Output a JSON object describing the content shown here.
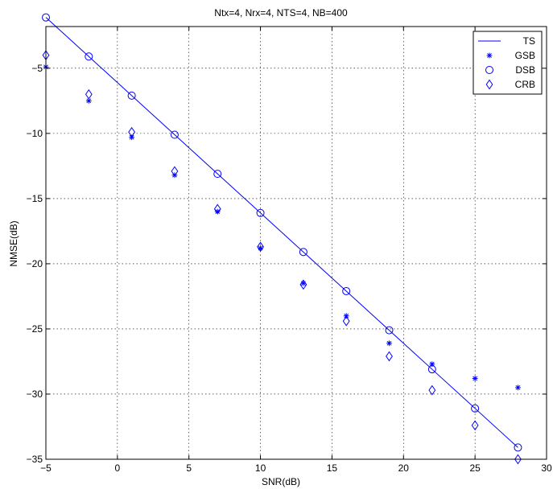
{
  "chart_data": {
    "type": "line",
    "title": "Ntx=4, Nrx=4, NTS=4, NB=400",
    "xlabel": "SNR(dB)",
    "ylabel": "NMSE(dB)",
    "xlim": [
      -5,
      30
    ],
    "ylim": [
      -35,
      -1.8
    ],
    "xticks": [
      -5,
      0,
      5,
      10,
      15,
      20,
      25,
      30
    ],
    "yticks": [
      -5,
      -10,
      -15,
      -20,
      -25,
      -30,
      -35
    ],
    "xtick_labels": [
      "−5",
      "0",
      "5",
      "10",
      "15",
      "20",
      "25",
      "30"
    ],
    "ytick_labels": [
      "−5",
      "−10",
      "−15",
      "−20",
      "−25",
      "−30",
      "−35"
    ],
    "grid": true,
    "legend_position": "top-right",
    "colors": {
      "series": "#0000ff",
      "axes": "#000000",
      "grid": "#000000"
    },
    "x": [
      -5,
      -2,
      1,
      4,
      7,
      10,
      13,
      16,
      19,
      22,
      25,
      28
    ],
    "series": [
      {
        "name": "TS",
        "marker": "line",
        "values": [
          -1.1,
          -4.1,
          -7.1,
          -10.1,
          -13.1,
          -16.1,
          -19.1,
          -22.1,
          -25.1,
          -28.1,
          -31.1,
          -34.1
        ]
      },
      {
        "name": "GSB",
        "marker": "star",
        "values": [
          -4.9,
          -7.5,
          -10.3,
          -13.2,
          -16.0,
          -18.8,
          -21.5,
          -24.0,
          -26.1,
          -27.7,
          -28.8,
          -29.5
        ]
      },
      {
        "name": "DSB",
        "marker": "circle",
        "values": [
          -1.1,
          -4.1,
          -7.1,
          -10.1,
          -13.1,
          -16.1,
          -19.1,
          -22.1,
          -25.1,
          -28.1,
          -31.1,
          -34.1
        ]
      },
      {
        "name": "CRB",
        "marker": "diamond",
        "values": [
          -4.0,
          -7.0,
          -9.9,
          -12.9,
          -15.8,
          -18.7,
          -21.6,
          -24.4,
          -27.1,
          -29.7,
          -32.4,
          -35.0
        ]
      }
    ]
  }
}
